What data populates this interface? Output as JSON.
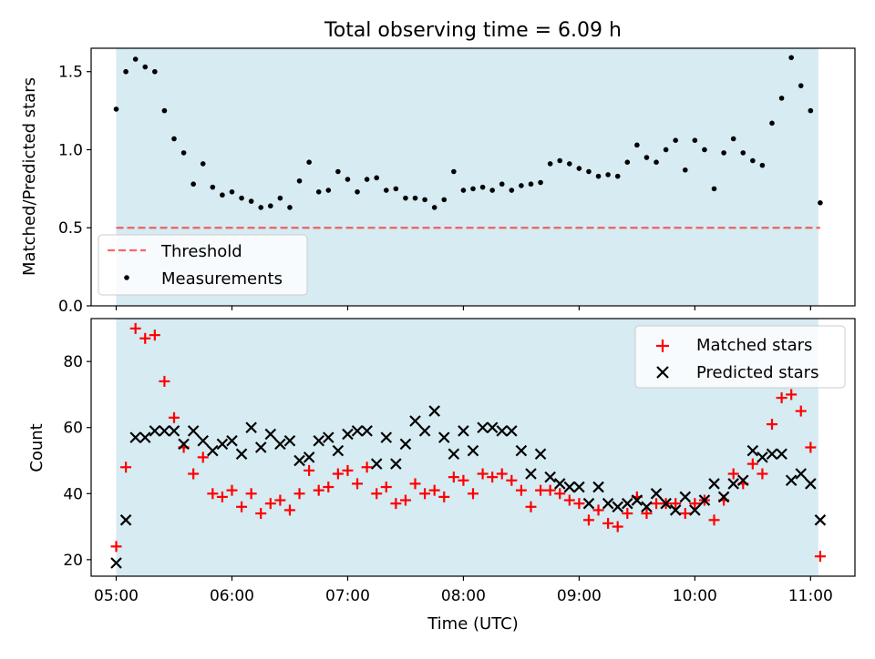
{
  "title": "Total observing time = 6.09 h",
  "colors": {
    "shade": "#add8e6",
    "threshold": "#ff0000",
    "matched": "#ff0000",
    "predicted": "#000000",
    "measurement": "#000000"
  },
  "chart_data": [
    {
      "type": "scatter",
      "panel": "top",
      "ylabel": "Matched/Predicted stars",
      "ylim": [
        0,
        1.65
      ],
      "yticks": [
        "0.0",
        "0.5",
        "1.0",
        "1.5"
      ],
      "xlim": [
        "04:47",
        "11:23"
      ],
      "xtick_labels_visible": false,
      "shaded_span": [
        "05:00",
        "11:04"
      ],
      "threshold": 0.5,
      "legend": {
        "placement": "lower-left",
        "entries": [
          "Threshold",
          "Measurements"
        ]
      },
      "series": [
        {
          "name": "Measurements",
          "marker": "dot",
          "points": [
            [
              "05:00",
              1.26
            ],
            [
              "05:05",
              1.5
            ],
            [
              "05:10",
              1.58
            ],
            [
              "05:15",
              1.53
            ],
            [
              "05:20",
              1.5
            ],
            [
              "05:25",
              1.25
            ],
            [
              "05:30",
              1.07
            ],
            [
              "05:35",
              0.98
            ],
            [
              "05:40",
              0.78
            ],
            [
              "05:45",
              0.91
            ],
            [
              "05:50",
              0.76
            ],
            [
              "05:55",
              0.71
            ],
            [
              "06:00",
              0.73
            ],
            [
              "06:05",
              0.69
            ],
            [
              "06:10",
              0.67
            ],
            [
              "06:15",
              0.63
            ],
            [
              "06:20",
              0.64
            ],
            [
              "06:25",
              0.69
            ],
            [
              "06:30",
              0.63
            ],
            [
              "06:35",
              0.8
            ],
            [
              "06:40",
              0.92
            ],
            [
              "06:45",
              0.73
            ],
            [
              "06:50",
              0.74
            ],
            [
              "06:55",
              0.86
            ],
            [
              "07:00",
              0.81
            ],
            [
              "07:05",
              0.73
            ],
            [
              "07:10",
              0.81
            ],
            [
              "07:15",
              0.82
            ],
            [
              "07:20",
              0.74
            ],
            [
              "07:25",
              0.75
            ],
            [
              "07:30",
              0.69
            ],
            [
              "07:35",
              0.69
            ],
            [
              "07:40",
              0.68
            ],
            [
              "07:45",
              0.63
            ],
            [
              "07:50",
              0.68
            ],
            [
              "07:55",
              0.86
            ],
            [
              "08:00",
              0.74
            ],
            [
              "08:05",
              0.75
            ],
            [
              "08:10",
              0.76
            ],
            [
              "08:15",
              0.74
            ],
            [
              "08:20",
              0.78
            ],
            [
              "08:25",
              0.74
            ],
            [
              "08:30",
              0.77
            ],
            [
              "08:35",
              0.78
            ],
            [
              "08:40",
              0.79
            ],
            [
              "08:45",
              0.91
            ],
            [
              "08:50",
              0.93
            ],
            [
              "08:55",
              0.91
            ],
            [
              "09:00",
              0.88
            ],
            [
              "09:05",
              0.86
            ],
            [
              "09:10",
              0.83
            ],
            [
              "09:15",
              0.84
            ],
            [
              "09:20",
              0.83
            ],
            [
              "09:25",
              0.92
            ],
            [
              "09:30",
              1.03
            ],
            [
              "09:35",
              0.95
            ],
            [
              "09:40",
              0.92
            ],
            [
              "09:45",
              1.0
            ],
            [
              "09:50",
              1.06
            ],
            [
              "09:55",
              0.87
            ],
            [
              "10:00",
              1.06
            ],
            [
              "10:05",
              1.0
            ],
            [
              "10:10",
              0.75
            ],
            [
              "10:15",
              0.98
            ],
            [
              "10:20",
              1.07
            ],
            [
              "10:25",
              0.98
            ],
            [
              "10:30",
              0.93
            ],
            [
              "10:35",
              0.9
            ],
            [
              "10:40",
              1.17
            ],
            [
              "10:45",
              1.33
            ],
            [
              "10:50",
              1.59
            ],
            [
              "10:55",
              1.41
            ],
            [
              "11:00",
              1.25
            ],
            [
              "11:05",
              0.66
            ]
          ]
        }
      ]
    },
    {
      "type": "scatter",
      "panel": "bottom",
      "xlabel": "Time (UTC)",
      "ylabel": "Count",
      "ylim": [
        15,
        93
      ],
      "yticks": [
        "20",
        "40",
        "60",
        "80"
      ],
      "xlim": [
        "04:47",
        "11:23"
      ],
      "xticks": [
        "05:00",
        "06:00",
        "07:00",
        "08:00",
        "09:00",
        "10:00",
        "11:00"
      ],
      "shaded_span": [
        "05:00",
        "11:04"
      ],
      "legend": {
        "placement": "upper-right",
        "entries": [
          "Matched stars",
          "Predicted stars"
        ]
      },
      "series": [
        {
          "name": "Matched stars",
          "marker": "plus",
          "points": [
            [
              "05:00",
              24
            ],
            [
              "05:05",
              48
            ],
            [
              "05:10",
              90
            ],
            [
              "05:15",
              87
            ],
            [
              "05:20",
              88
            ],
            [
              "05:25",
              74
            ],
            [
              "05:30",
              63
            ],
            [
              "05:35",
              54
            ],
            [
              "05:40",
              46
            ],
            [
              "05:45",
              51
            ],
            [
              "05:50",
              40
            ],
            [
              "05:55",
              39
            ],
            [
              "06:00",
              41
            ],
            [
              "06:05",
              36
            ],
            [
              "06:10",
              40
            ],
            [
              "06:15",
              34
            ],
            [
              "06:20",
              37
            ],
            [
              "06:25",
              38
            ],
            [
              "06:30",
              35
            ],
            [
              "06:35",
              40
            ],
            [
              "06:40",
              47
            ],
            [
              "06:45",
              41
            ],
            [
              "06:50",
              42
            ],
            [
              "06:55",
              46
            ],
            [
              "07:00",
              47
            ],
            [
              "07:05",
              43
            ],
            [
              "07:10",
              48
            ],
            [
              "07:15",
              40
            ],
            [
              "07:20",
              42
            ],
            [
              "07:25",
              37
            ],
            [
              "07:30",
              38
            ],
            [
              "07:35",
              43
            ],
            [
              "07:40",
              40
            ],
            [
              "07:45",
              41
            ],
            [
              "07:50",
              39
            ],
            [
              "07:55",
              45
            ],
            [
              "08:00",
              44
            ],
            [
              "08:05",
              40
            ],
            [
              "08:10",
              46
            ],
            [
              "08:15",
              45
            ],
            [
              "08:20",
              46
            ],
            [
              "08:25",
              44
            ],
            [
              "08:30",
              41
            ],
            [
              "08:35",
              36
            ],
            [
              "08:40",
              41
            ],
            [
              "08:45",
              41
            ],
            [
              "08:50",
              40
            ],
            [
              "08:55",
              38
            ],
            [
              "09:00",
              37
            ],
            [
              "09:05",
              32
            ],
            [
              "09:10",
              35
            ],
            [
              "09:15",
              31
            ],
            [
              "09:20",
              30
            ],
            [
              "09:25",
              34
            ],
            [
              "09:30",
              39
            ],
            [
              "09:35",
              34
            ],
            [
              "09:40",
              37
            ],
            [
              "09:45",
              37
            ],
            [
              "09:50",
              37
            ],
            [
              "09:55",
              34
            ],
            [
              "10:00",
              37
            ],
            [
              "10:05",
              38
            ],
            [
              "10:10",
              32
            ],
            [
              "10:15",
              38
            ],
            [
              "10:20",
              46
            ],
            [
              "10:25",
              43
            ],
            [
              "10:30",
              49
            ],
            [
              "10:35",
              46
            ],
            [
              "10:40",
              61
            ],
            [
              "10:45",
              69
            ],
            [
              "10:50",
              70
            ],
            [
              "10:55",
              65
            ],
            [
              "11:00",
              54
            ],
            [
              "11:05",
              21
            ]
          ]
        },
        {
          "name": "Predicted stars",
          "marker": "x",
          "points": [
            [
              "05:00",
              19
            ],
            [
              "05:05",
              32
            ],
            [
              "05:10",
              57
            ],
            [
              "05:15",
              57
            ],
            [
              "05:20",
              59
            ],
            [
              "05:25",
              59
            ],
            [
              "05:30",
              59
            ],
            [
              "05:35",
              55
            ],
            [
              "05:40",
              59
            ],
            [
              "05:45",
              56
            ],
            [
              "05:50",
              53
            ],
            [
              "05:55",
              55
            ],
            [
              "06:00",
              56
            ],
            [
              "06:05",
              52
            ],
            [
              "06:10",
              60
            ],
            [
              "06:15",
              54
            ],
            [
              "06:20",
              58
            ],
            [
              "06:25",
              55
            ],
            [
              "06:30",
              56
            ],
            [
              "06:35",
              50
            ],
            [
              "06:40",
              51
            ],
            [
              "06:45",
              56
            ],
            [
              "06:50",
              57
            ],
            [
              "06:55",
              53
            ],
            [
              "07:00",
              58
            ],
            [
              "07:05",
              59
            ],
            [
              "07:10",
              59
            ],
            [
              "07:15",
              49
            ],
            [
              "07:20",
              57
            ],
            [
              "07:25",
              49
            ],
            [
              "07:30",
              55
            ],
            [
              "07:35",
              62
            ],
            [
              "07:40",
              59
            ],
            [
              "07:45",
              65
            ],
            [
              "07:50",
              57
            ],
            [
              "07:55",
              52
            ],
            [
              "08:00",
              59
            ],
            [
              "08:05",
              53
            ],
            [
              "08:10",
              60
            ],
            [
              "08:15",
              60
            ],
            [
              "08:20",
              59
            ],
            [
              "08:25",
              59
            ],
            [
              "08:30",
              53
            ],
            [
              "08:35",
              46
            ],
            [
              "08:40",
              52
            ],
            [
              "08:45",
              45
            ],
            [
              "08:50",
              43
            ],
            [
              "08:55",
              42
            ],
            [
              "09:00",
              42
            ],
            [
              "09:05",
              37
            ],
            [
              "09:10",
              42
            ],
            [
              "09:15",
              37
            ],
            [
              "09:20",
              36
            ],
            [
              "09:25",
              37
            ],
            [
              "09:30",
              38
            ],
            [
              "09:35",
              36
            ],
            [
              "09:40",
              40
            ],
            [
              "09:45",
              37
            ],
            [
              "09:50",
              35
            ],
            [
              "09:55",
              39
            ],
            [
              "10:00",
              35
            ],
            [
              "10:05",
              38
            ],
            [
              "10:10",
              43
            ],
            [
              "10:15",
              39
            ],
            [
              "10:20",
              43
            ],
            [
              "10:25",
              44
            ],
            [
              "10:30",
              53
            ],
            [
              "10:35",
              51
            ],
            [
              "10:40",
              52
            ],
            [
              "10:45",
              52
            ],
            [
              "10:50",
              44
            ],
            [
              "10:55",
              46
            ],
            [
              "11:00",
              43
            ],
            [
              "11:05",
              32
            ]
          ]
        }
      ]
    }
  ]
}
